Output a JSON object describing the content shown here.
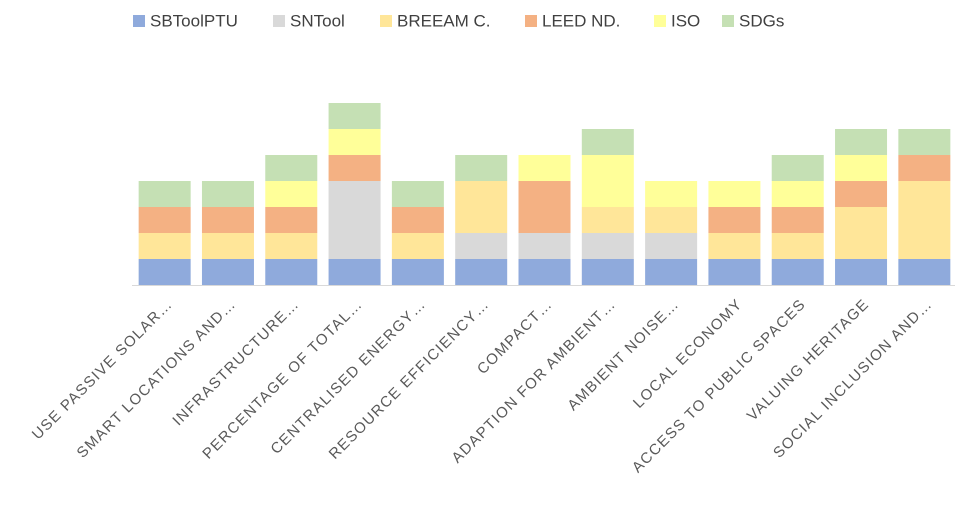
{
  "chart_data": {
    "type": "stacked_bar",
    "categories": [
      "USE PASSIVE SOLAR…",
      "SMART LOCATIONS AND…",
      "INFRASTRUCTURE…",
      "PERCENTAGE OF TOTAL…",
      "CENTRALISED ENERGY…",
      "RESOURCE EFFICIENCY…",
      "COMPACT…",
      "ADAPTION FOR AMBIENT…",
      "AMBIENT NOISE…",
      "LOCAL ECONOMY",
      "ACCESS TO PUBLIC SPACES",
      "VALUING HERITAGE",
      "SOCIAL INCLUSION AND…"
    ],
    "series": [
      {
        "name": "SBToolPTU",
        "color": "#8faadc",
        "values": [
          1,
          1,
          1,
          1,
          1,
          1,
          1,
          1,
          1,
          1,
          1,
          1,
          1
        ]
      },
      {
        "name": "SNTool",
        "color": "#d9d9d9",
        "values": [
          0,
          0,
          0,
          3,
          0,
          1,
          1,
          1,
          1,
          0,
          0,
          0,
          0
        ]
      },
      {
        "name": "BREEAM C.",
        "color": "#ffe699",
        "values": [
          1,
          1,
          1,
          0,
          1,
          2,
          0,
          1,
          1,
          1,
          1,
          2,
          3
        ]
      },
      {
        "name": "LEED ND.",
        "color": "#f4b183",
        "values": [
          1,
          1,
          1,
          1,
          1,
          0,
          2,
          0,
          0,
          1,
          1,
          1,
          1
        ]
      },
      {
        "name": "ISO",
        "color": "#ffff99",
        "values": [
          0,
          0,
          1,
          1,
          0,
          0,
          1,
          2,
          1,
          1,
          1,
          1,
          0
        ]
      },
      {
        "name": "SDGs",
        "color": "#c5e0b4",
        "values": [
          1,
          1,
          1,
          1,
          1,
          1,
          0,
          1,
          0,
          0,
          1,
          1,
          1
        ]
      }
    ],
    "legend": "top"
  }
}
